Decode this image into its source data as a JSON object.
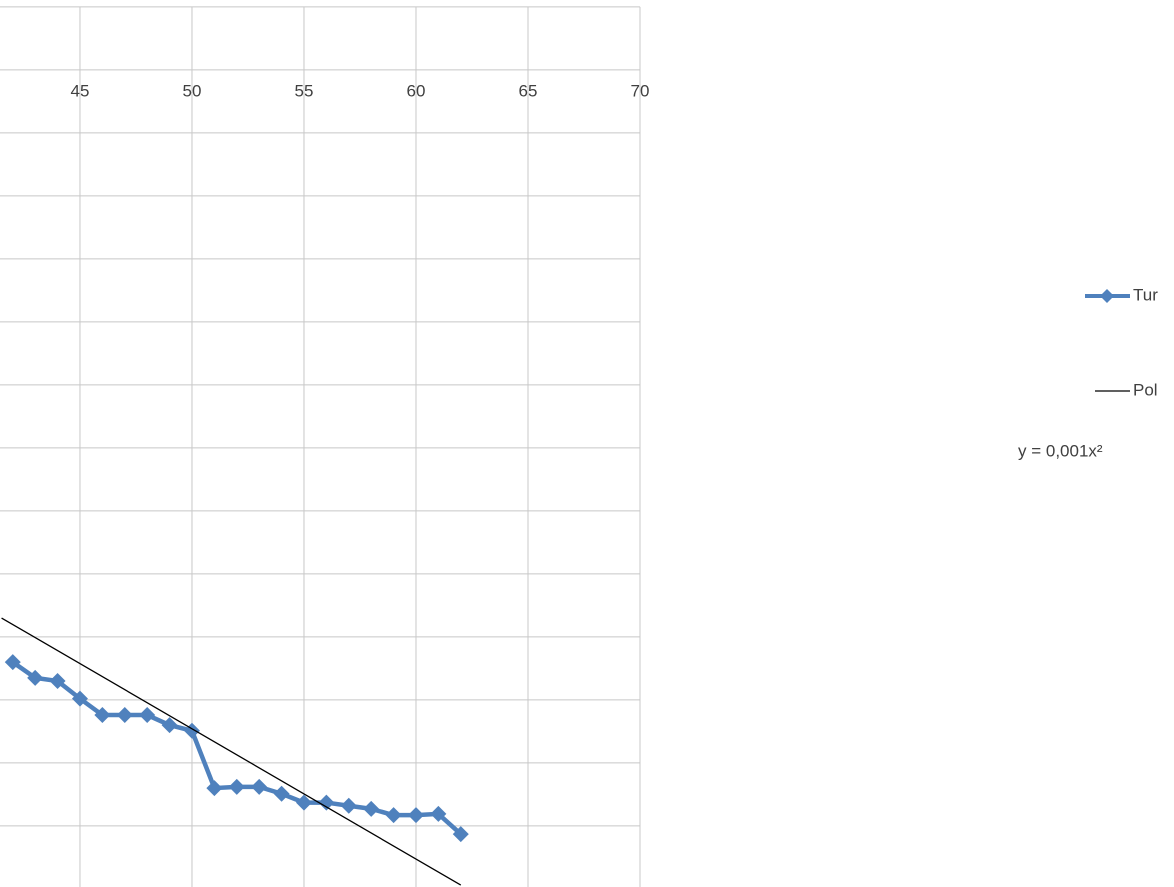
{
  "chart_data": {
    "type": "line",
    "xlim": [
      41.43,
      70
    ],
    "xticks": [
      45,
      50,
      55,
      60,
      65,
      70
    ],
    "ylim": [
      0.03,
      14.11
    ],
    "yticks": [
      1,
      2,
      3,
      4,
      5,
      6,
      7,
      8,
      9,
      10,
      11,
      12,
      13,
      14
    ],
    "grid": true,
    "series": [
      {
        "name": "Tur",
        "color": "#4f81bd",
        "x": [
          42,
          43,
          44,
          45,
          46,
          47,
          48,
          49,
          50,
          51,
          52,
          53,
          54,
          55,
          56,
          57,
          58,
          59,
          60,
          61,
          62
        ],
        "values": [
          3.6,
          3.35,
          3.3,
          3.02,
          2.76,
          2.76,
          2.76,
          2.6,
          2.51,
          1.6,
          1.62,
          1.62,
          1.51,
          1.37,
          1.37,
          1.32,
          1.27,
          1.17,
          1.17,
          1.19,
          0.87
        ]
      },
      {
        "name": "Pol",
        "color": "#000000",
        "x": [
          41.5,
          62
        ],
        "values": [
          4.3,
          0.06
        ]
      }
    ],
    "equation": "y = 0,001x²"
  }
}
